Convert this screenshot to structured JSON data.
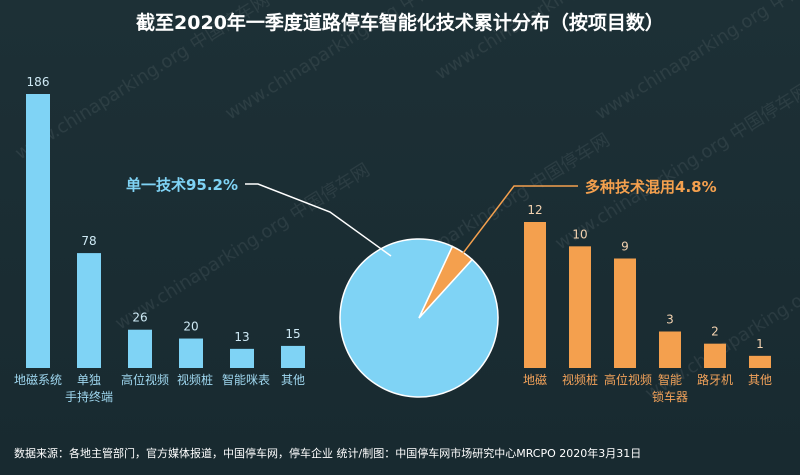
{
  "title": "截至2020年一季度道路停车智能化技术累计分布（按项目数）",
  "source": "数据来源：各地主管部门，官方媒体报道，中国停车网，停车企业  统计/制图：中国停车网市场研究中心MRCPO 2020年3月31日",
  "watermark": "www.chinaparking.org 中国停车网",
  "colors": {
    "single": "#7fd3f5",
    "mixed": "#f4a04e",
    "background": "#1b2d33"
  },
  "chart_data": [
    {
      "type": "bar",
      "categories": [
        "地磁系统",
        "单独手持终端",
        "高位视频",
        "视频桩",
        "智能咪表",
        "其他"
      ],
      "category_lines": [
        [
          "地磁系统"
        ],
        [
          "单独",
          "手持终端"
        ],
        [
          "高位视频"
        ],
        [
          "视频桩"
        ],
        [
          "智能咪表"
        ],
        [
          "其他"
        ]
      ],
      "values": [
        186,
        78,
        26,
        20,
        13,
        15
      ],
      "ylim": [
        0,
        186
      ]
    },
    {
      "type": "pie",
      "labels": [
        "单一技术",
        "多种技术混用"
      ],
      "values": [
        95.2,
        4.8
      ],
      "label_text": [
        "单一技术95.2%",
        "多种技术混用4.8%"
      ]
    },
    {
      "type": "bar",
      "categories": [
        "地磁",
        "视频桩",
        "高位视频",
        "智能锁车器",
        "路牙机",
        "其他"
      ],
      "category_lines": [
        [
          "地磁"
        ],
        [
          "视频桩"
        ],
        [
          "高位视频"
        ],
        [
          "智能",
          "锁车器"
        ],
        [
          "路牙机"
        ],
        [
          "其他"
        ]
      ],
      "values": [
        12,
        10,
        9,
        3,
        2,
        1
      ],
      "ylim": [
        0,
        12
      ]
    }
  ]
}
